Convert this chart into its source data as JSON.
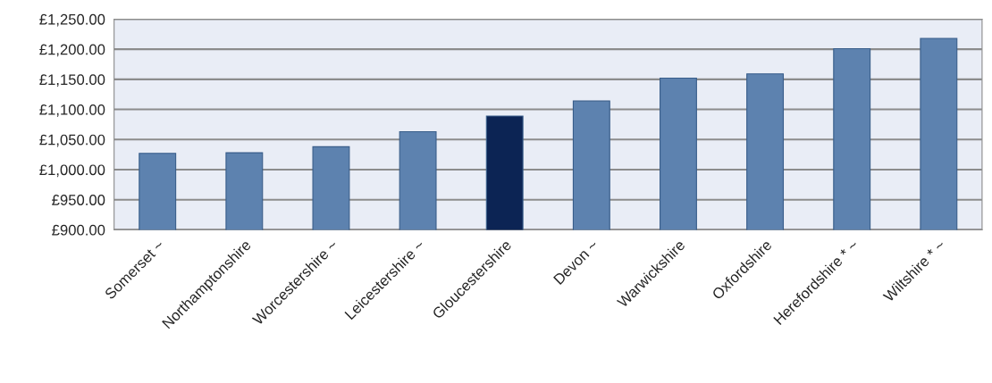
{
  "chart_data": {
    "type": "bar",
    "categories": [
      "Somerset ~",
      "Northamptonshire",
      "Worcestershire ~",
      "Leicestershire ~",
      "Gloucestershire",
      "Devon ~",
      "Warwickshire",
      "Oxfordshire",
      "Herefordshire * ~",
      "Wiltshire * ~"
    ],
    "values": [
      1027,
      1028,
      1038,
      1063,
      1089,
      1114,
      1152,
      1159,
      1201,
      1218
    ],
    "colors": [
      "#4f81bd",
      "#4f81bd",
      "#4f81bd",
      "#4f81bd",
      "#002060",
      "#4f81bd",
      "#4f81bd",
      "#4f81bd",
      "#4f81bd",
      "#4f81bd"
    ],
    "ylim": [
      900,
      1250
    ],
    "yticks": [
      {
        "value": 900,
        "label": "£900.00"
      },
      {
        "value": 950,
        "label": "£950.00"
      },
      {
        "value": 1000,
        "label": "£1,000.00"
      },
      {
        "value": 1050,
        "label": "£1,050.00"
      },
      {
        "value": 1100,
        "label": "£1,100.00"
      },
      {
        "value": 1150,
        "label": "£1,150.00"
      },
      {
        "value": 1200,
        "label": "£1,200.00"
      },
      {
        "value": 1250,
        "label": "£1,250.00"
      }
    ],
    "grid": "y"
  }
}
